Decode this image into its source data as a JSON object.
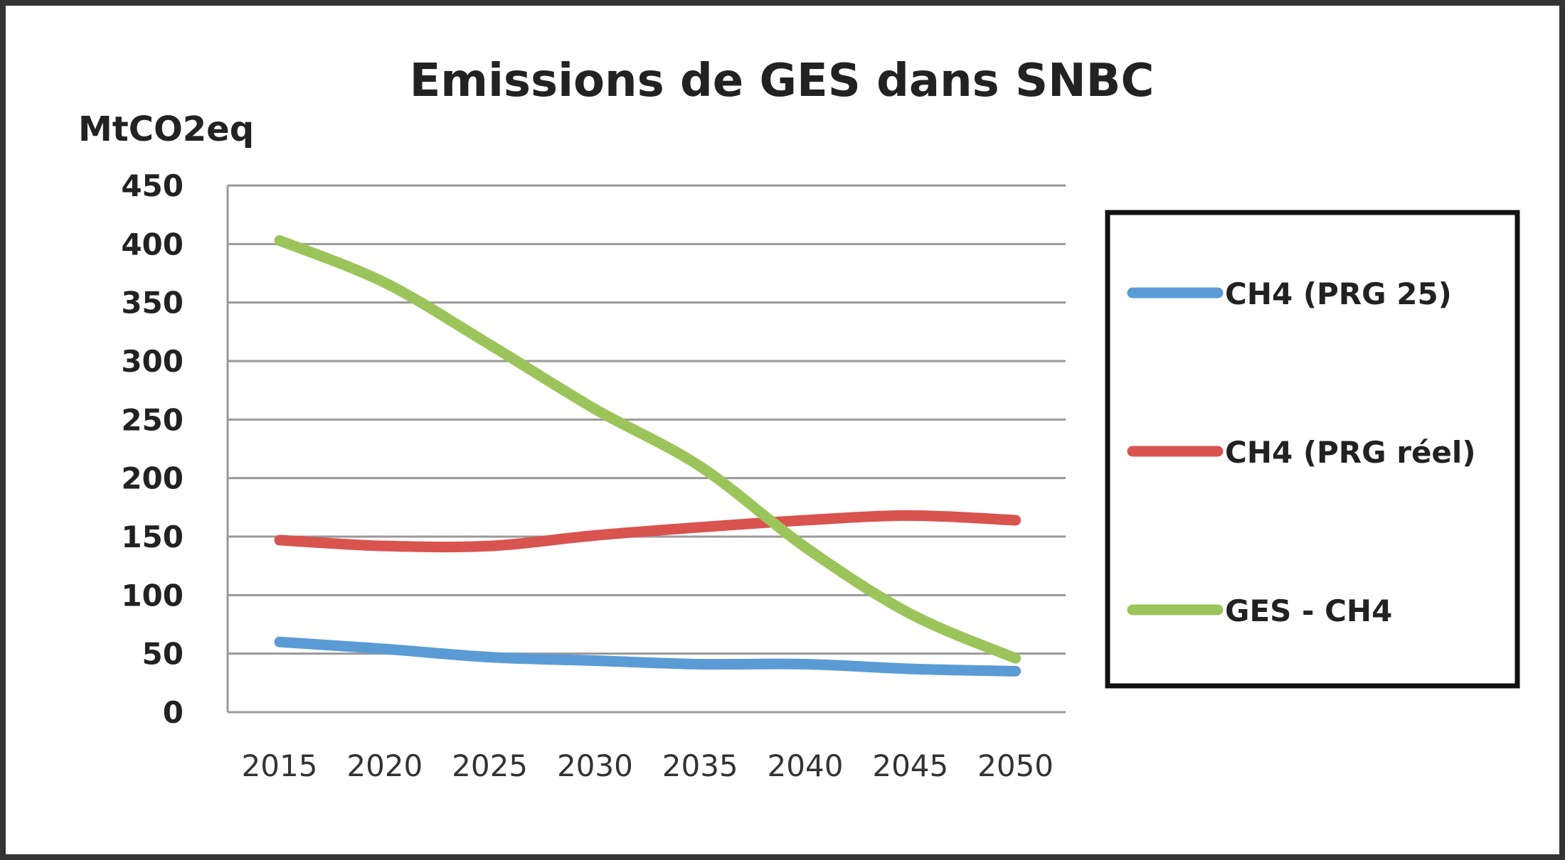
{
  "chart_data": {
    "type": "line",
    "title": "Emissions de GES dans SNBC",
    "ylabel": "MtCO2eq",
    "xlabel": "",
    "x": [
      "2015",
      "2020",
      "2025",
      "2030",
      "2035",
      "2040",
      "2045",
      "2050"
    ],
    "ylim": [
      0,
      450
    ],
    "yticks": [
      0,
      50,
      100,
      150,
      200,
      250,
      300,
      350,
      400,
      450
    ],
    "grid": true,
    "legend_placement": "right",
    "series": [
      {
        "name": "CH4 (PRG 25)",
        "color": "#5b9bd5",
        "values": [
          60,
          54,
          47,
          44,
          41,
          41,
          37,
          35
        ]
      },
      {
        "name": "CH4 (PRG réel)",
        "color": "#d9534f",
        "values": [
          147,
          142,
          142,
          151,
          158,
          164,
          168,
          164
        ]
      },
      {
        "name": "GES - CH4",
        "color": "#9bc55a",
        "values": [
          403,
          367,
          314,
          259,
          210,
          141,
          84,
          46
        ]
      }
    ]
  }
}
